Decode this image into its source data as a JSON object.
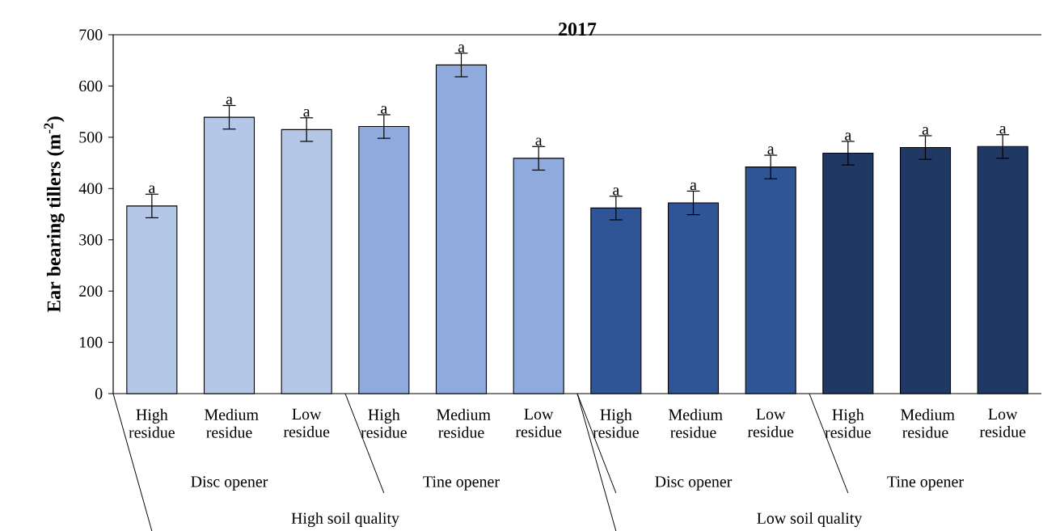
{
  "chart_data": {
    "type": "bar",
    "title": "2017",
    "ylabel": "Ear bearing tillers (m$^{-2}$)",
    "categories": [
      "High residue",
      "Medium residue",
      "Low residue",
      "High residue",
      "Medium residue",
      "Low residue",
      "High residue",
      "Medium residue",
      "Low residue",
      "High residue",
      "Medium residue",
      "Low residue"
    ],
    "values": [
      366,
      539,
      515,
      521,
      641,
      459,
      362,
      372,
      442,
      469,
      480,
      482
    ],
    "errors": [
      23,
      23,
      23,
      23,
      23,
      23,
      23,
      23,
      23,
      23,
      23,
      23
    ],
    "value_labels": [
      "a",
      "a",
      "a",
      "a",
      "a",
      "a",
      "a",
      "a",
      "a",
      "a",
      "a",
      "a"
    ],
    "colors": [
      "#b4c7e7",
      "#b4c7e7",
      "#b4c7e7",
      "#8faadc",
      "#8faadc",
      "#8faadc",
      "#2f5597",
      "#2f5597",
      "#2f5597",
      "#203864",
      "#203864",
      "#203864"
    ],
    "ylim": [
      0,
      700
    ],
    "yticks": [
      0,
      100,
      200,
      300,
      400,
      500,
      600,
      700
    ],
    "annotations": [
      "Disc opener",
      "Tine opener",
      "Disc opener",
      "Tine opener",
      "High soil quality",
      "Low soil quality"
    ]
  }
}
